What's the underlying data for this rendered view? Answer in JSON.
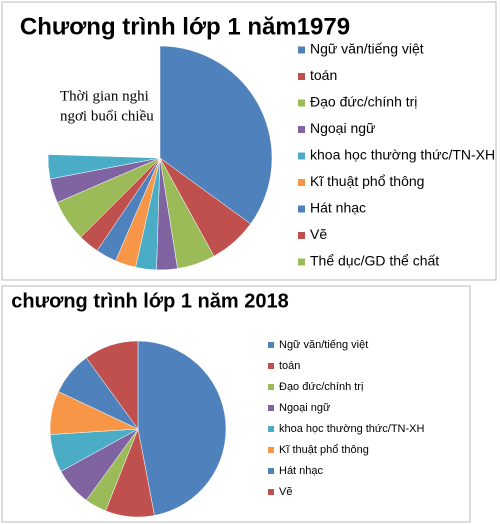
{
  "chart_data": [
    {
      "type": "pie",
      "title": "Chương trình lớp 1 năm1979",
      "annotation": [
        "Thời gian nghi",
        "ngơi buổi chiều"
      ],
      "categories": [
        "Ngữ văn/tiếng việt",
        "toán",
        "Đạo đức/chính trị",
        "Ngoại ngữ",
        "khoa học thường thức/TN-XH",
        "Kĩ thuật phổ thông",
        "Hát nhạc",
        "Vẽ",
        "Thể dục/GD thể chất",
        null,
        null
      ],
      "values": [
        35,
        7,
        5.5,
        3,
        3,
        3,
        3,
        3,
        6,
        3.5,
        3.5
      ],
      "colors": [
        "#4f81bd",
        "#c0504d",
        "#9bbb59",
        "#8064a2",
        "#4bacc6",
        "#f79646",
        "#4f81bd",
        "#c0504d",
        "#9bbb59",
        "#8064a2",
        "#4bacc6"
      ]
    },
    {
      "type": "pie",
      "title": "chương trình lớp 1 năm 2018",
      "categories": [
        "Ngữ văn/tiếng việt",
        "toán",
        "Đạo đức/chính trị",
        "Ngoại ngữ",
        "khoa học thường thức/TN-XH",
        "Kĩ thuật phổ thông",
        "Hát nhạc",
        "Vẽ"
      ],
      "values": [
        47,
        9,
        4,
        7,
        7,
        8,
        8,
        10
      ],
      "colors": [
        "#4f81bd",
        "#c0504d",
        "#9bbb59",
        "#8064a2",
        "#4bacc6",
        "#f79646",
        "#4f81bd",
        "#c0504d"
      ]
    }
  ]
}
